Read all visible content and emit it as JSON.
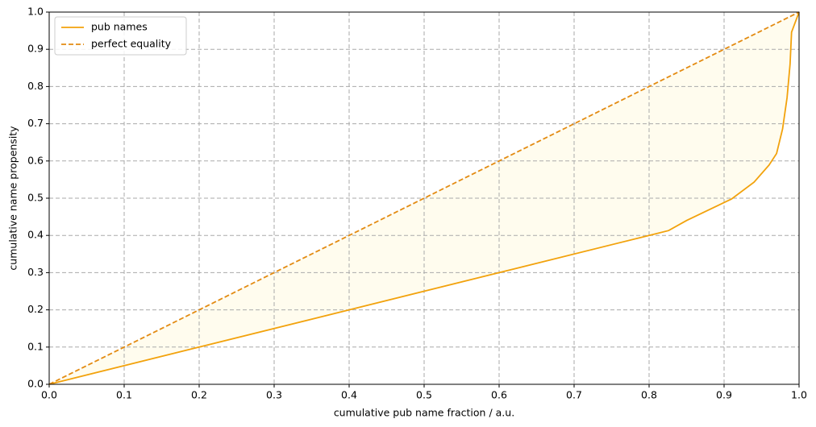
{
  "chart_data": {
    "type": "line",
    "xlabel": "cumulative pub name fraction / a.u.",
    "ylabel": "cumulative name propensity",
    "series": [
      {
        "name": "pub names",
        "color": "#f2a20c",
        "dash": false,
        "x": [
          0,
          0.2,
          0.4,
          0.6,
          0.8,
          0.826,
          0.85,
          0.91,
          0.94,
          0.96,
          0.97,
          0.978,
          0.984,
          0.988,
          0.99,
          1.0
        ],
        "values": [
          0,
          0.1,
          0.2,
          0.3,
          0.4,
          0.413,
          0.44,
          0.498,
          0.543,
          0.589,
          0.62,
          0.686,
          0.77,
          0.86,
          0.946,
          1.0
        ]
      },
      {
        "name": "perfect equality",
        "color": "#e38b12",
        "dash": true,
        "x": [
          0,
          1
        ],
        "values": [
          0,
          1
        ]
      }
    ],
    "fill_between": "#fffcee",
    "xlim": [
      0,
      1
    ],
    "ylim": [
      0,
      1
    ],
    "xticks": [
      {
        "value": 0,
        "label": "0.0"
      },
      0.1,
      0.2,
      0.3,
      0.4,
      0.5,
      0.6,
      0.7,
      0.8,
      0.9,
      {
        "value": 1,
        "label": "1.0"
      }
    ],
    "yticks": [
      {
        "value": 0,
        "label": "0.0"
      },
      0.1,
      0.2,
      0.3,
      0.4,
      0.5,
      0.6,
      0.7,
      0.8,
      0.9,
      {
        "value": 1,
        "label": "1.0"
      }
    ],
    "grid": true,
    "legend": "upper-left"
  }
}
